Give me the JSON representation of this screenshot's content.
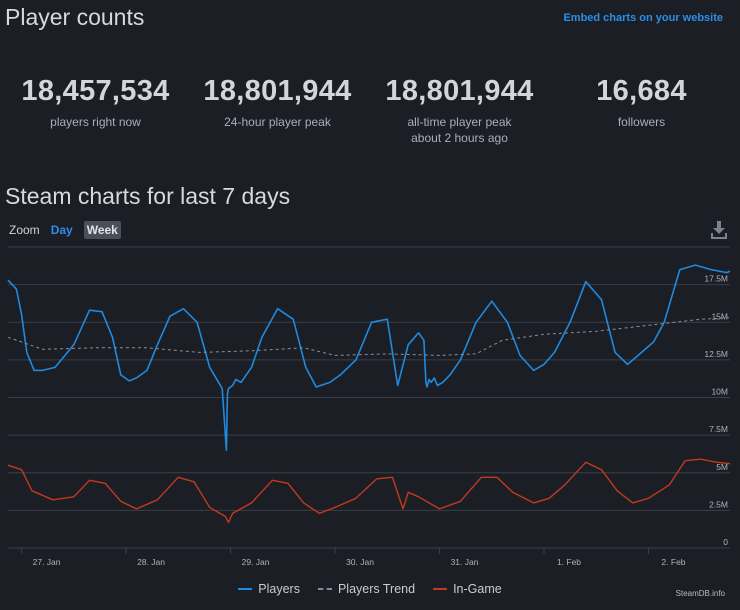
{
  "header": {
    "title": "Player counts",
    "embed_link": "Embed charts on your website"
  },
  "stats": [
    {
      "value": "18,457,534",
      "label": "players right now",
      "sublabel": ""
    },
    {
      "value": "18,801,944",
      "label": "24-hour player peak",
      "sublabel": ""
    },
    {
      "value": "18,801,944",
      "label": "all-time player peak",
      "sublabel": "about 2 hours ago"
    },
    {
      "value": "16,684",
      "label": "followers",
      "sublabel": ""
    }
  ],
  "section": {
    "title": "Steam charts for last 7 days",
    "zoom_label": "Zoom",
    "zoom_day": "Day",
    "zoom_week": "Week"
  },
  "credit": "SteamDB.info",
  "colors": {
    "players": "#1f8ae0",
    "trend": "#8a8f97",
    "in_game": "#c23a1e",
    "grid": "#3a3f48",
    "background": "#1b1e24"
  },
  "chart_data": {
    "type": "line",
    "title": "",
    "xlabel": "",
    "ylabel": "",
    "ylim": [
      0,
      20000000
    ],
    "x_ticks": [
      "27. Jan",
      "28. Jan",
      "29. Jan",
      "30. Jan",
      "31. Jan",
      "1. Feb",
      "2. Feb"
    ],
    "y_ticks": [
      "0",
      "2.5M",
      "5M",
      "7.5M",
      "10M",
      "12.5M",
      "15M",
      "17.5M"
    ],
    "legend": [
      "Players",
      "Players Trend",
      "In-Game"
    ],
    "legend_position": "bottom",
    "grid": true,
    "x_unit": "days from 27 Jan 00:00",
    "series": [
      {
        "name": "Players",
        "x": [
          -0.13,
          -0.05,
          0.0,
          0.05,
          0.12,
          0.2,
          0.32,
          0.5,
          0.65,
          0.77,
          0.87,
          0.95,
          1.03,
          1.1,
          1.2,
          1.3,
          1.42,
          1.55,
          1.68,
          1.8,
          1.92,
          1.96,
          1.97,
          1.98,
          2.02,
          2.05,
          2.1,
          2.2,
          2.3,
          2.45,
          2.6,
          2.72,
          2.82,
          2.95,
          3.05,
          3.2,
          3.35,
          3.5,
          3.6,
          3.7,
          3.8,
          3.85,
          3.87,
          3.88,
          3.9,
          3.92,
          3.95,
          3.98,
          4.03,
          4.1,
          4.2,
          4.35,
          4.5,
          4.65,
          4.77,
          4.9,
          5.0,
          5.1,
          5.25,
          5.4,
          5.55,
          5.68,
          5.8,
          5.9,
          6.05,
          6.15,
          6.3,
          6.45,
          6.6,
          6.75,
          6.78
        ],
        "values": [
          17800000,
          17200000,
          15500000,
          13000000,
          11800000,
          11800000,
          12000000,
          13500000,
          15800000,
          15700000,
          14000000,
          11500000,
          11100000,
          11300000,
          11800000,
          13500000,
          15400000,
          15900000,
          15000000,
          12000000,
          10600000,
          6500000,
          10200000,
          10600000,
          10800000,
          11200000,
          11000000,
          12000000,
          14000000,
          15900000,
          15200000,
          12000000,
          10700000,
          11000000,
          11500000,
          12500000,
          15000000,
          15200000,
          10800000,
          13500000,
          14300000,
          13800000,
          11000000,
          10700000,
          11200000,
          11000000,
          11300000,
          10800000,
          11000000,
          11500000,
          12500000,
          15000000,
          16400000,
          15000000,
          12800000,
          11800000,
          12200000,
          13000000,
          15000000,
          17700000,
          16500000,
          13000000,
          12200000,
          12800000,
          13700000,
          15000000,
          18500000,
          18800000,
          18500000,
          18300000,
          18400000
        ]
      },
      {
        "name": "Players Trend",
        "x": [
          -0.13,
          0.2,
          0.7,
          1.2,
          1.7,
          2.2,
          2.7,
          3.0,
          3.5,
          4.0,
          4.35,
          4.6,
          5.0,
          5.5,
          6.0,
          6.5,
          6.78
        ],
        "values": [
          14000000,
          13200000,
          13300000,
          13300000,
          13000000,
          13100000,
          13300000,
          12800000,
          12900000,
          12800000,
          12900000,
          13800000,
          14200000,
          14400000,
          14800000,
          15200000,
          15300000
        ]
      },
      {
        "name": "In-Game",
        "x": [
          -0.13,
          0.0,
          0.1,
          0.3,
          0.5,
          0.65,
          0.8,
          0.95,
          1.1,
          1.3,
          1.5,
          1.65,
          1.8,
          1.95,
          1.98,
          2.02,
          2.2,
          2.4,
          2.55,
          2.7,
          2.85,
          3.0,
          3.2,
          3.4,
          3.55,
          3.65,
          3.7,
          3.8,
          4.0,
          4.2,
          4.4,
          4.55,
          4.7,
          4.9,
          5.05,
          5.2,
          5.4,
          5.55,
          5.7,
          5.85,
          6.0,
          6.2,
          6.35,
          6.5,
          6.65,
          6.78
        ],
        "values": [
          5500000,
          5200000,
          3800000,
          3200000,
          3400000,
          4500000,
          4300000,
          3100000,
          2600000,
          3200000,
          4700000,
          4400000,
          2700000,
          2100000,
          1700000,
          2300000,
          3000000,
          4500000,
          4300000,
          3000000,
          2300000,
          2700000,
          3300000,
          4600000,
          4700000,
          2600000,
          3700000,
          3400000,
          2600000,
          3100000,
          4700000,
          4700000,
          3700000,
          3000000,
          3300000,
          4200000,
          5700000,
          5200000,
          3800000,
          3000000,
          3300000,
          4200000,
          5800000,
          5900000,
          5700000,
          5600000
        ]
      }
    ]
  }
}
